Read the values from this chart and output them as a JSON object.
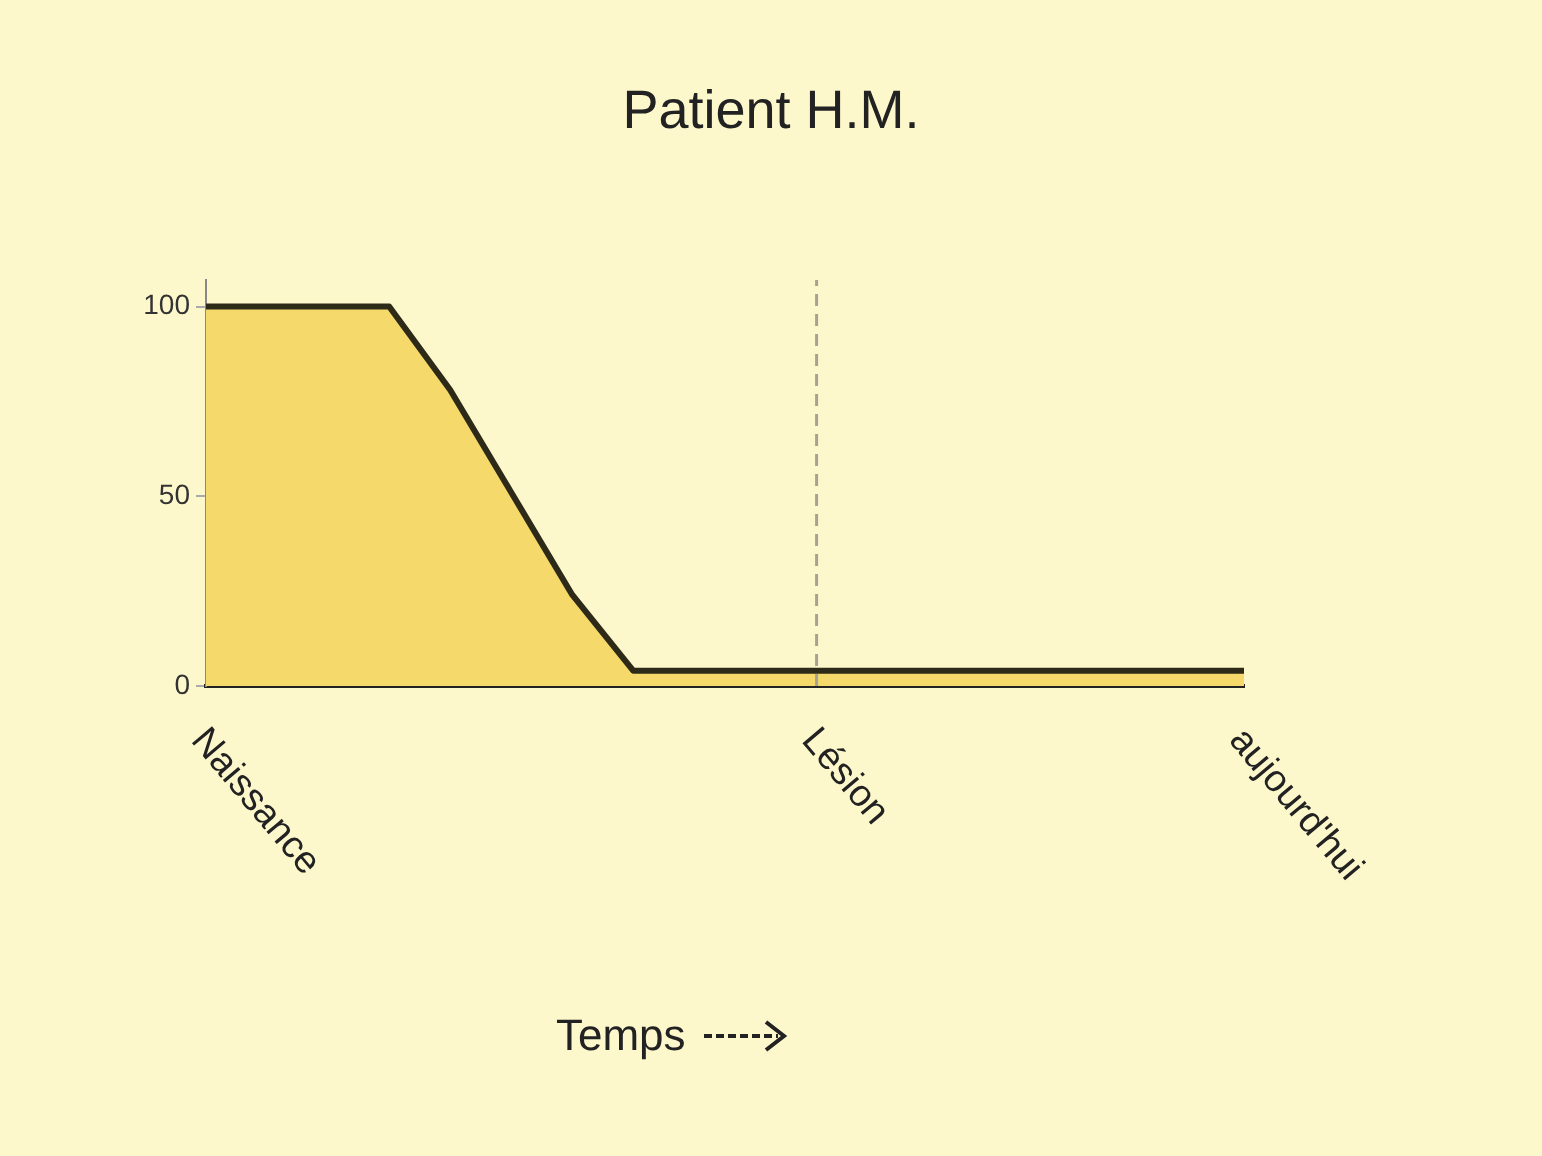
{
  "chart_data": {
    "type": "area",
    "title": "Patient H.M.",
    "xlabel": "Temps",
    "categories": [
      "Naissance",
      null,
      null,
      null,
      null,
      null,
      null,
      null,
      null,
      null,
      "Lésion",
      null,
      null,
      null,
      null,
      null,
      null,
      "aujourd'hui"
    ],
    "series": [
      {
        "color": "#f5d96a",
        "values": [
          100,
          100,
          100,
          100,
          78,
          51,
          24,
          4,
          4,
          4,
          4,
          4,
          4,
          4,
          4,
          4,
          4,
          4
        ]
      }
    ],
    "ylim": [
      0,
      107
    ],
    "yticks": [
      0,
      50,
      100
    ],
    "ref_lines": [
      {
        "axis": "x",
        "value": "Lésion",
        "color": "#a8a290",
        "line_style": "dashed"
      }
    ],
    "grid": false,
    "legend": false,
    "marker": "none"
  }
}
